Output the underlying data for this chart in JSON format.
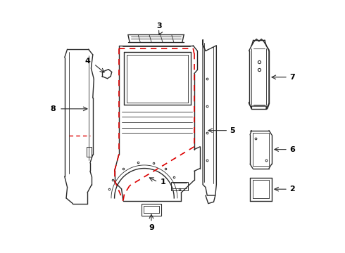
{
  "bg_color": "#ffffff",
  "line_color": "#2a2a2a",
  "dashed_red": "#dd0000",
  "label_color": "#000000",
  "lw_main": 1.0,
  "lw_thin": 0.6,
  "fs_label": 8
}
